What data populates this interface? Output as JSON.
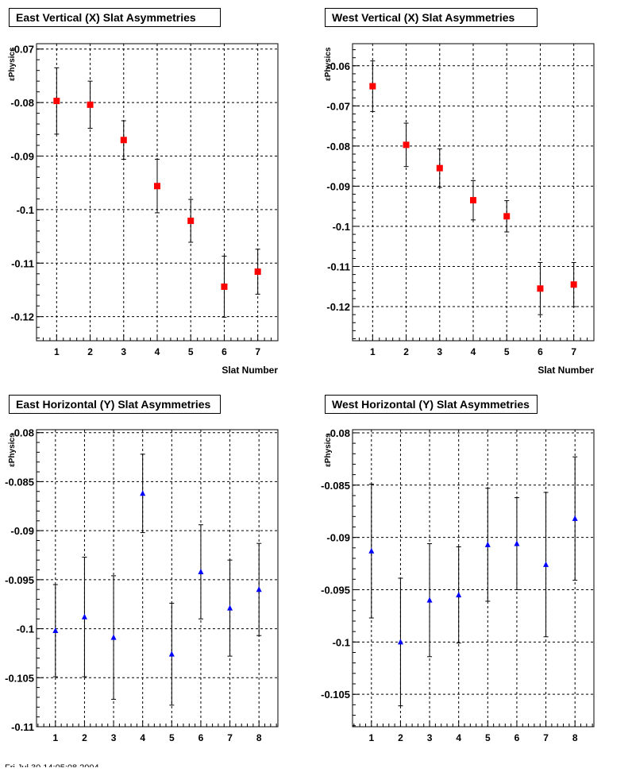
{
  "footer_text": "Fri Jul 30 14:05:08 2004",
  "chart_data": [
    {
      "type": "scatter",
      "title": "East Vertical (X) Slat Asymmetries",
      "xlabel": "Slat Number",
      "ylabel": "εPhysics",
      "xlim": [
        0.4,
        7.6
      ],
      "ylim": [
        -0.1245,
        -0.069
      ],
      "x_ticks": [
        1,
        2,
        3,
        4,
        5,
        6,
        7
      ],
      "y_ticks": [
        -0.12,
        -0.11,
        -0.1,
        -0.09,
        -0.08,
        -0.07
      ],
      "y_tick_labels": [
        "-0.12",
        "-0.11",
        "-0.1",
        "-0.09",
        "-0.08",
        "-0.07"
      ],
      "grid": true,
      "marker": "square",
      "marker_color": "#ff0000",
      "points": [
        {
          "x": 1,
          "y": -0.0797,
          "err": 0.0062
        },
        {
          "x": 2,
          "y": -0.0804,
          "err": 0.0044
        },
        {
          "x": 3,
          "y": -0.087,
          "err": 0.0036
        },
        {
          "x": 4,
          "y": -0.0956,
          "err": 0.005
        },
        {
          "x": 5,
          "y": -0.1021,
          "err": 0.004
        },
        {
          "x": 6,
          "y": -0.1144,
          "err": 0.0057
        },
        {
          "x": 7,
          "y": -0.1116,
          "err": 0.0042
        }
      ]
    },
    {
      "type": "scatter",
      "title": "West Vertical (X) Slat Asymmetries",
      "xlabel": "Slat Number",
      "ylabel": "εPhysics",
      "xlim": [
        0.4,
        7.6
      ],
      "ylim": [
        -0.1285,
        -0.0545
      ],
      "x_ticks": [
        1,
        2,
        3,
        4,
        5,
        6,
        7
      ],
      "y_ticks": [
        -0.12,
        -0.11,
        -0.1,
        -0.09,
        -0.08,
        -0.07,
        -0.06
      ],
      "y_tick_labels": [
        "-0.12",
        "-0.11",
        "-0.1",
        "-0.09",
        "-0.08",
        "-0.07",
        "-0.06"
      ],
      "grid": true,
      "marker": "square",
      "marker_color": "#ff0000",
      "points": [
        {
          "x": 1,
          "y": -0.0651,
          "err": 0.0063
        },
        {
          "x": 2,
          "y": -0.0797,
          "err": 0.0054
        },
        {
          "x": 3,
          "y": -0.0855,
          "err": 0.0048
        },
        {
          "x": 4,
          "y": -0.0935,
          "err": 0.0049
        },
        {
          "x": 5,
          "y": -0.0975,
          "err": 0.0039
        },
        {
          "x": 6,
          "y": -0.1155,
          "err": 0.0065
        },
        {
          "x": 7,
          "y": -0.1145,
          "err": 0.0055
        }
      ]
    },
    {
      "type": "scatter",
      "title": "East Horizontal (Y) Slat Asymmetries",
      "xlabel": "",
      "ylabel": "εPhysics",
      "xlim": [
        0.35,
        8.65
      ],
      "ylim": [
        -0.11,
        -0.0797
      ],
      "x_ticks": [
        1,
        2,
        3,
        4,
        5,
        6,
        7,
        8
      ],
      "y_ticks": [
        -0.11,
        -0.105,
        -0.1,
        -0.095,
        -0.09,
        -0.085,
        -0.08
      ],
      "y_tick_labels": [
        "-0.11",
        "-0.105",
        "-0.1",
        "-0.095",
        "-0.09",
        "-0.085",
        "-0.08"
      ],
      "grid": true,
      "marker": "triangle",
      "marker_color": "#0000ff",
      "points": [
        {
          "x": 1,
          "y": -0.1002,
          "err": 0.0047
        },
        {
          "x": 2,
          "y": -0.0988,
          "err": 0.0061
        },
        {
          "x": 3,
          "y": -0.1009,
          "err": 0.0063
        },
        {
          "x": 4,
          "y": -0.0862,
          "err": 0.004
        },
        {
          "x": 5,
          "y": -0.1026,
          "err": 0.0052
        },
        {
          "x": 6,
          "y": -0.0942,
          "err": 0.0048
        },
        {
          "x": 7,
          "y": -0.0979,
          "err": 0.0049
        },
        {
          "x": 8,
          "y": -0.096,
          "err": 0.0047
        }
      ]
    },
    {
      "type": "scatter",
      "title": "West Horizontal (Y) Slat Asymmetries",
      "xlabel": "",
      "ylabel": "εPhysics",
      "xlim": [
        0.35,
        8.65
      ],
      "ylim": [
        -0.1081,
        -0.0797
      ],
      "x_ticks": [
        1,
        2,
        3,
        4,
        5,
        6,
        7,
        8
      ],
      "y_ticks": [
        -0.105,
        -0.1,
        -0.095,
        -0.09,
        -0.085,
        -0.08
      ],
      "y_tick_labels": [
        "-0.105",
        "-0.1",
        "-0.095",
        "-0.09",
        "-0.085",
        "-0.08"
      ],
      "grid": true,
      "marker": "triangle",
      "marker_color": "#0000ff",
      "points": [
        {
          "x": 1,
          "y": -0.0913,
          "err": 0.0064
        },
        {
          "x": 2,
          "y": -0.1,
          "err": 0.0061
        },
        {
          "x": 3,
          "y": -0.096,
          "err": 0.0054
        },
        {
          "x": 4,
          "y": -0.0955,
          "err": 0.0046
        },
        {
          "x": 5,
          "y": -0.0907,
          "err": 0.0054
        },
        {
          "x": 6,
          "y": -0.0906,
          "err": 0.0044
        },
        {
          "x": 7,
          "y": -0.0926,
          "err": 0.0069
        },
        {
          "x": 8,
          "y": -0.0882,
          "err": 0.0059
        }
      ]
    }
  ]
}
